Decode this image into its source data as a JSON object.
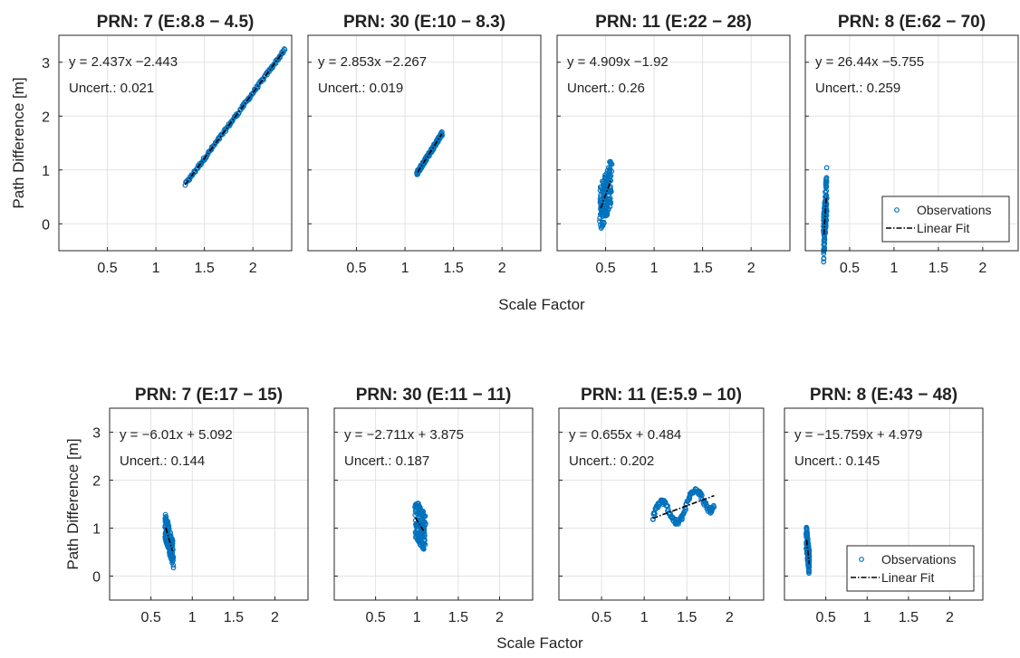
{
  "figure": {
    "rows": [
      {
        "xlabel": "Scale Factor",
        "ylabel": "Path Difference [m]"
      },
      {
        "xlabel": "Scale Factor",
        "ylabel": "Path Difference [m]"
      }
    ],
    "legend": {
      "observations": "Observations",
      "fit": "Linear Fit"
    },
    "colors": {
      "observations": "#0072bd",
      "fit": "#000000",
      "grid": "#e3e3e3",
      "axes": "#262626"
    }
  },
  "chart_data": [
    {
      "type": "scatter",
      "title": "PRN: 7 (E:8.8 − 4.5)",
      "xlim": [
        0,
        2.4
      ],
      "ylim": [
        -0.5,
        3.5
      ],
      "xticks": [
        "0.5",
        "1",
        "1.5",
        "2"
      ],
      "yticks": [
        "0",
        "1",
        "2",
        "3"
      ],
      "xlabel": "",
      "ylabel": "Path Difference [m]",
      "equation": "y = 2.437x −2.443",
      "uncertainty": "Uncert.: 0.021",
      "fit": {
        "slope": 2.437,
        "intercept": -2.443,
        "x": [
          1.3,
          2.32
        ]
      },
      "obs_x_range": [
        1.3,
        2.33
      ],
      "obs_spread": 0.03,
      "obs_wave": 0,
      "legend": false
    },
    {
      "type": "scatter",
      "title": "PRN: 30 (E:10 − 8.3)",
      "xlim": [
        0,
        2.4
      ],
      "ylim": [
        -0.5,
        3.5
      ],
      "xticks": [
        "0.5",
        "1",
        "1.5",
        "2"
      ],
      "yticks": [
        "0",
        "1",
        "2",
        "3"
      ],
      "xlabel": "",
      "ylabel": "",
      "equation": "y = 2.853x −2.267",
      "uncertainty": "Uncert.: 0.019",
      "fit": {
        "slope": 2.853,
        "intercept": -2.267,
        "x": [
          1.13,
          1.38
        ]
      },
      "obs_x_range": [
        1.12,
        1.38
      ],
      "obs_spread": 0.04,
      "obs_wave": 0,
      "legend": false
    },
    {
      "type": "scatter",
      "title": "PRN: 11 (E:22 − 28)",
      "xlim": [
        0,
        2.4
      ],
      "ylim": [
        -0.5,
        3.5
      ],
      "xticks": [
        "0.5",
        "1",
        "1.5",
        "2"
      ],
      "yticks": [
        "0",
        "1",
        "2",
        "3"
      ],
      "xlabel": "Scale Factor",
      "ylabel": "",
      "equation": "y = 4.909x −1.92",
      "uncertainty": "Uncert.: 0.26",
      "fit": {
        "slope": 4.909,
        "intercept": -1.92,
        "x": [
          0.45,
          0.56
        ]
      },
      "obs_x_range": [
        0.44,
        0.56
      ],
      "obs_spread": 0.45,
      "obs_wave": 0,
      "legend": false
    },
    {
      "type": "scatter",
      "title": "PRN: 8 (E:62 − 70)",
      "xlim": [
        0,
        2.4
      ],
      "ylim": [
        -0.5,
        3.5
      ],
      "xticks": [
        "0.5",
        "1",
        "1.5",
        "2"
      ],
      "yticks": [
        "0",
        "1",
        "2",
        "3"
      ],
      "xlabel": "",
      "ylabel": "",
      "equation": "y = 26.44x −5.755",
      "uncertainty": "Uncert.: 0.259",
      "fit": {
        "slope": 26.44,
        "intercept": -5.755,
        "x": [
          0.21,
          0.236
        ]
      },
      "obs_x_range": [
        0.205,
        0.24
      ],
      "obs_spread": 0.45,
      "obs_wave": 0,
      "legend": true
    },
    {
      "type": "scatter",
      "title": "PRN: 7 (E:17 − 15)",
      "xlim": [
        0,
        2.4
      ],
      "ylim": [
        -0.5,
        3.5
      ],
      "xticks": [
        "0.5",
        "1",
        "1.5",
        "2"
      ],
      "yticks": [
        "0",
        "1",
        "2",
        "3"
      ],
      "xlabel": "",
      "ylabel": "Path Difference [m]",
      "equation": "y = −6.01x + 5.092",
      "uncertainty": "Uncert.: 0.144",
      "fit": {
        "slope": -6.01,
        "intercept": 5.092,
        "x": [
          0.68,
          0.76
        ]
      },
      "obs_x_range": [
        0.67,
        0.77
      ],
      "obs_spread": 0.28,
      "obs_wave": 0,
      "legend": false
    },
    {
      "type": "scatter",
      "title": "PRN: 30 (E:11 − 11)",
      "xlim": [
        0,
        2.4
      ],
      "ylim": [
        -0.5,
        3.5
      ],
      "xticks": [
        "0.5",
        "1",
        "1.5",
        "2"
      ],
      "yticks": [
        "0",
        "1",
        "2",
        "3"
      ],
      "xlabel": "",
      "ylabel": "",
      "equation": "y = −2.711x + 3.875",
      "uncertainty": "Uncert.: 0.187",
      "fit": {
        "slope": -2.711,
        "intercept": 3.875,
        "x": [
          0.98,
          1.08
        ]
      },
      "obs_x_range": [
        0.98,
        1.1
      ],
      "obs_spread": 0.4,
      "obs_wave": 0,
      "legend": false
    },
    {
      "type": "scatter",
      "title": "PRN: 11 (E:5.9 − 10)",
      "xlim": [
        0,
        2.4
      ],
      "ylim": [
        -0.5,
        3.5
      ],
      "xticks": [
        "0.5",
        "1",
        "1.5",
        "2"
      ],
      "yticks": [
        "0",
        "1",
        "2",
        "3"
      ],
      "xlabel": "Scale Factor",
      "ylabel": "",
      "equation": "y = 0.655x + 0.484",
      "uncertainty": "Uncert.: 0.202",
      "fit": {
        "slope": 0.655,
        "intercept": 0.484,
        "x": [
          1.1,
          1.82
        ]
      },
      "obs_x_range": [
        1.1,
        1.82
      ],
      "obs_spread": 0.06,
      "obs_wave": 0.28,
      "legend": false
    },
    {
      "type": "scatter",
      "title": "PRN: 8 (E:43 − 48)",
      "xlim": [
        0,
        2.4
      ],
      "ylim": [
        -0.5,
        3.5
      ],
      "xticks": [
        "0.5",
        "1",
        "1.5",
        "2"
      ],
      "yticks": [
        "0",
        "1",
        "2",
        "3"
      ],
      "xlabel": "",
      "ylabel": "",
      "equation": "y = −15.759x + 4.979",
      "uncertainty": "Uncert.: 0.145",
      "fit": {
        "slope": -15.759,
        "intercept": 4.979,
        "x": [
          0.268,
          0.3
        ]
      },
      "obs_x_range": [
        0.265,
        0.3
      ],
      "obs_spread": 0.25,
      "obs_wave": 0,
      "legend": true
    }
  ]
}
